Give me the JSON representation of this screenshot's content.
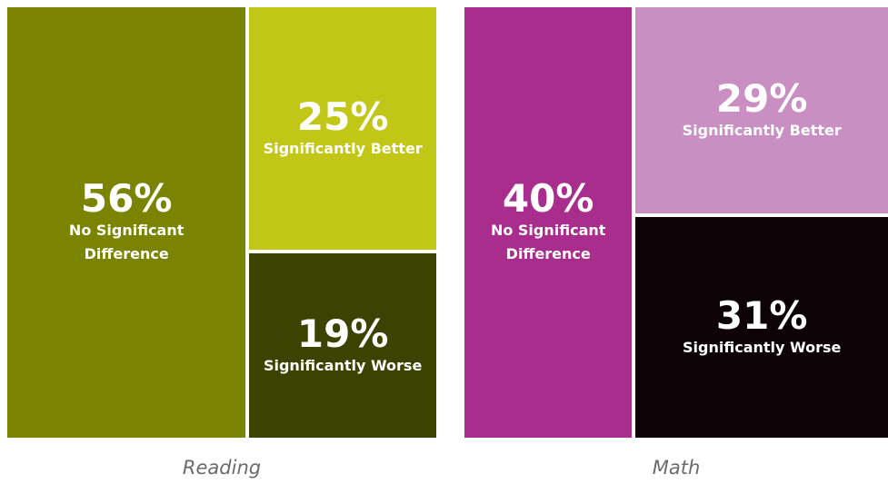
{
  "chart_data": [
    {
      "type": "treemap",
      "title": "Reading",
      "categories": [
        "No Significant Difference",
        "Significantly Better",
        "Significantly Worse"
      ],
      "values": [
        56,
        25,
        19
      ],
      "value_labels": [
        "56%",
        "25%",
        "19%"
      ],
      "colors": [
        "#7a8400",
        "#c2c617",
        "#3c4300"
      ]
    },
    {
      "type": "treemap",
      "title": "Math",
      "categories": [
        "No Significant Difference",
        "Significantly Better",
        "Significantly Worse"
      ],
      "values": [
        40,
        29,
        31
      ],
      "value_labels": [
        "40%",
        "29%",
        "31%"
      ],
      "colors": [
        "#a92d8c",
        "#c98fc2",
        "#0d0206"
      ]
    }
  ]
}
